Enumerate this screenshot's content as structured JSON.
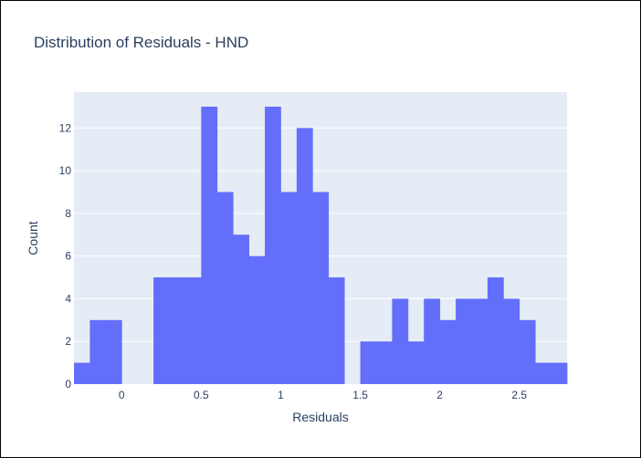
{
  "chart_data": {
    "type": "bar",
    "title": "Distribution of Residuals - HND",
    "xlabel": "Residuals",
    "ylabel": "Count",
    "bin_width": 0.1,
    "bin_starts": [
      -0.3,
      -0.2,
      -0.1,
      0.0,
      0.1,
      0.2,
      0.3,
      0.4,
      0.5,
      0.6,
      0.7,
      0.8,
      0.9,
      1.0,
      1.1,
      1.2,
      1.3,
      1.4,
      1.5,
      1.6,
      1.7,
      1.8,
      1.9,
      2.0,
      2.1,
      2.2,
      2.3,
      2.4,
      2.5,
      2.6,
      2.7
    ],
    "values": [
      1,
      3,
      3,
      0,
      0,
      5,
      5,
      5,
      13,
      9,
      7,
      6,
      13,
      9,
      12,
      9,
      5,
      0,
      2,
      2,
      4,
      2,
      4,
      3,
      4,
      4,
      5,
      4,
      3,
      1,
      1
    ],
    "xlim": [
      -0.3,
      2.8
    ],
    "ylim": [
      0,
      13.68
    ],
    "x_ticks": [
      0,
      0.5,
      1,
      1.5,
      2,
      2.5
    ],
    "x_tick_labels": [
      "0",
      "0.5",
      "1",
      "1.5",
      "2",
      "2.5"
    ],
    "y_ticks": [
      0,
      2,
      4,
      6,
      8,
      10,
      12
    ],
    "y_tick_labels": [
      "0",
      "2",
      "4",
      "6",
      "8",
      "10",
      "12"
    ],
    "bar_color": "#636efa",
    "plot_bg": "#e5ecf6",
    "grid_color": "#ffffff",
    "grid": true
  }
}
